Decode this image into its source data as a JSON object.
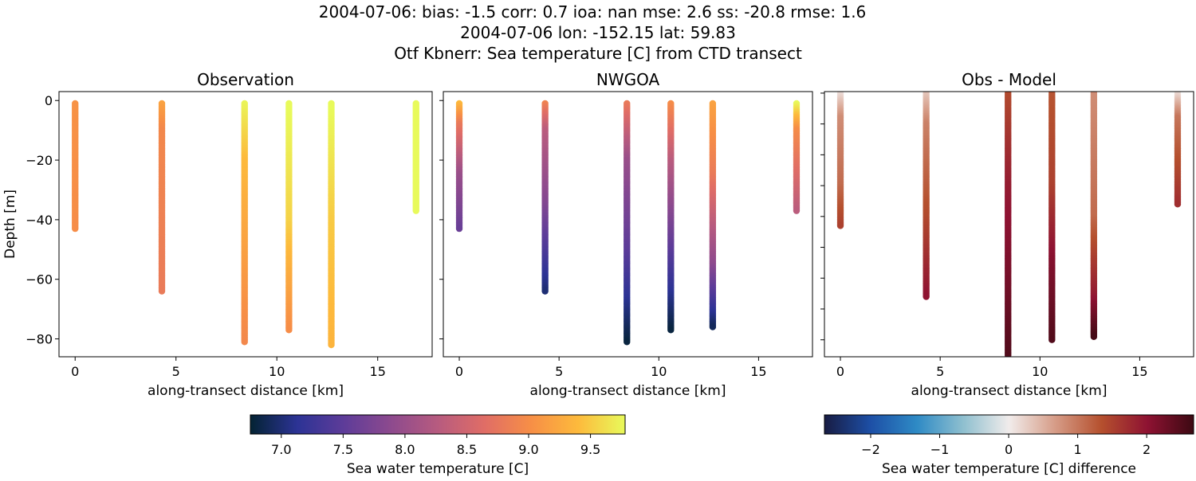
{
  "title_lines": [
    "2004-07-06: bias: -1.5  corr: 0.7  ioa: nan  mse: 2.6  ss: -20.8  rmse: 1.6",
    "2004-07-06 lon: -152.15 lat: 59.83",
    "Otf Kbnerr: Sea temperature [C] from CTD transect"
  ],
  "chart_data": [
    {
      "type": "scatter",
      "title": "Observation",
      "xlabel": "along-transect distance [km]",
      "ylabel": "Depth [m]",
      "xlim": [
        -0.8,
        17.7
      ],
      "ylim": [
        -86,
        3
      ],
      "xticks": [
        "0",
        "5",
        "10",
        "15"
      ],
      "yticks": [
        "0",
        "−20",
        "−40",
        "−60",
        "−80"
      ],
      "colormap": "thermal",
      "profiles": [
        {
          "x": 0.0,
          "max_depth": 43,
          "depths": [
            1,
            43
          ],
          "values": [
            9.05,
            9.0
          ]
        },
        {
          "x": 4.3,
          "max_depth": 64,
          "depths": [
            1,
            10,
            64
          ],
          "values": [
            9.2,
            8.95,
            8.8
          ]
        },
        {
          "x": 8.4,
          "max_depth": 81,
          "depths": [
            1,
            20,
            81
          ],
          "values": [
            9.75,
            9.4,
            8.95
          ]
        },
        {
          "x": 10.6,
          "max_depth": 77,
          "depths": [
            1,
            40,
            77
          ],
          "values": [
            9.8,
            9.55,
            9.0
          ]
        },
        {
          "x": 12.7,
          "max_depth": 82,
          "depths": [
            1,
            40,
            82
          ],
          "values": [
            9.8,
            9.5,
            9.35
          ]
        },
        {
          "x": 16.9,
          "max_depth": 37,
          "depths": [
            1,
            37
          ],
          "values": [
            9.85,
            9.8
          ]
        }
      ]
    },
    {
      "type": "scatter",
      "title": "NWGOA",
      "xlabel": "along-transect distance [km]",
      "xlim": [
        -0.8,
        17.7
      ],
      "ylim": [
        -86,
        3
      ],
      "xticks": [
        "0",
        "5",
        "10",
        "15"
      ],
      "colormap": "thermal",
      "profiles": [
        {
          "x": 0.0,
          "max_depth": 43,
          "depths": [
            1,
            8,
            25,
            43
          ],
          "values": [
            9.4,
            8.8,
            8.0,
            7.6
          ]
        },
        {
          "x": 4.3,
          "max_depth": 64,
          "depths": [
            1,
            10,
            35,
            64
          ],
          "values": [
            8.9,
            8.3,
            7.8,
            7.0
          ]
        },
        {
          "x": 8.4,
          "max_depth": 81,
          "depths": [
            1,
            20,
            50,
            81
          ],
          "values": [
            8.8,
            8.0,
            7.5,
            6.8
          ]
        },
        {
          "x": 10.6,
          "max_depth": 77,
          "depths": [
            1,
            20,
            50,
            77
          ],
          "values": [
            9.0,
            8.3,
            7.5,
            6.8
          ]
        },
        {
          "x": 12.7,
          "max_depth": 76,
          "depths": [
            1,
            25,
            55,
            76
          ],
          "values": [
            9.2,
            8.8,
            7.9,
            6.9
          ]
        },
        {
          "x": 16.9,
          "max_depth": 37,
          "depths": [
            1,
            10,
            37
          ],
          "values": [
            9.8,
            9.0,
            8.3
          ]
        }
      ]
    },
    {
      "type": "scatter",
      "title": "Obs - Model",
      "xlabel": "along-transect distance [km]",
      "xlim": [
        -0.8,
        17.7
      ],
      "ylim": [
        -85.5,
        0.5
      ],
      "xticks": [
        "0",
        "5",
        "10",
        "15"
      ],
      "colormap": "balance",
      "profiles": [
        {
          "x": 0.0,
          "max_depth": 43,
          "depths": [
            0,
            8,
            30,
            43
          ],
          "values": [
            0.1,
            0.8,
            1.1,
            1.5
          ]
        },
        {
          "x": 4.3,
          "max_depth": 66,
          "depths": [
            0,
            10,
            40,
            66
          ],
          "values": [
            0.3,
            0.9,
            1.4,
            2.0
          ]
        },
        {
          "x": 8.4,
          "max_depth": 85,
          "depths": [
            0,
            30,
            60,
            85
          ],
          "values": [
            1.4,
            1.9,
            2.2,
            2.5
          ]
        },
        {
          "x": 10.6,
          "max_depth": 80,
          "depths": [
            0,
            30,
            55,
            80
          ],
          "values": [
            1.3,
            1.5,
            2.1,
            2.5
          ]
        },
        {
          "x": 12.7,
          "max_depth": 79,
          "depths": [
            0,
            40,
            65,
            79
          ],
          "values": [
            0.8,
            1.1,
            1.9,
            2.6
          ]
        },
        {
          "x": 16.9,
          "max_depth": 36,
          "depths": [
            0,
            8,
            36
          ],
          "values": [
            0.1,
            1.0,
            1.7
          ]
        }
      ]
    }
  ],
  "colorbars": [
    {
      "label": "Sea water temperature [C]",
      "range": [
        6.75,
        9.78
      ],
      "ticks": [
        "7.0",
        "7.5",
        "8.0",
        "8.5",
        "9.0",
        "9.5"
      ],
      "tick_values": [
        7.0,
        7.5,
        8.0,
        8.5,
        9.0,
        9.5
      ],
      "colormap": "thermal"
    },
    {
      "label": "Sea water temperature [C] difference",
      "range": [
        -2.67,
        2.68
      ],
      "ticks": [
        "−2",
        "−1",
        "0",
        "1",
        "2"
      ],
      "tick_values": [
        -2,
        -1,
        0,
        1,
        2
      ],
      "colormap": "balance"
    }
  ]
}
